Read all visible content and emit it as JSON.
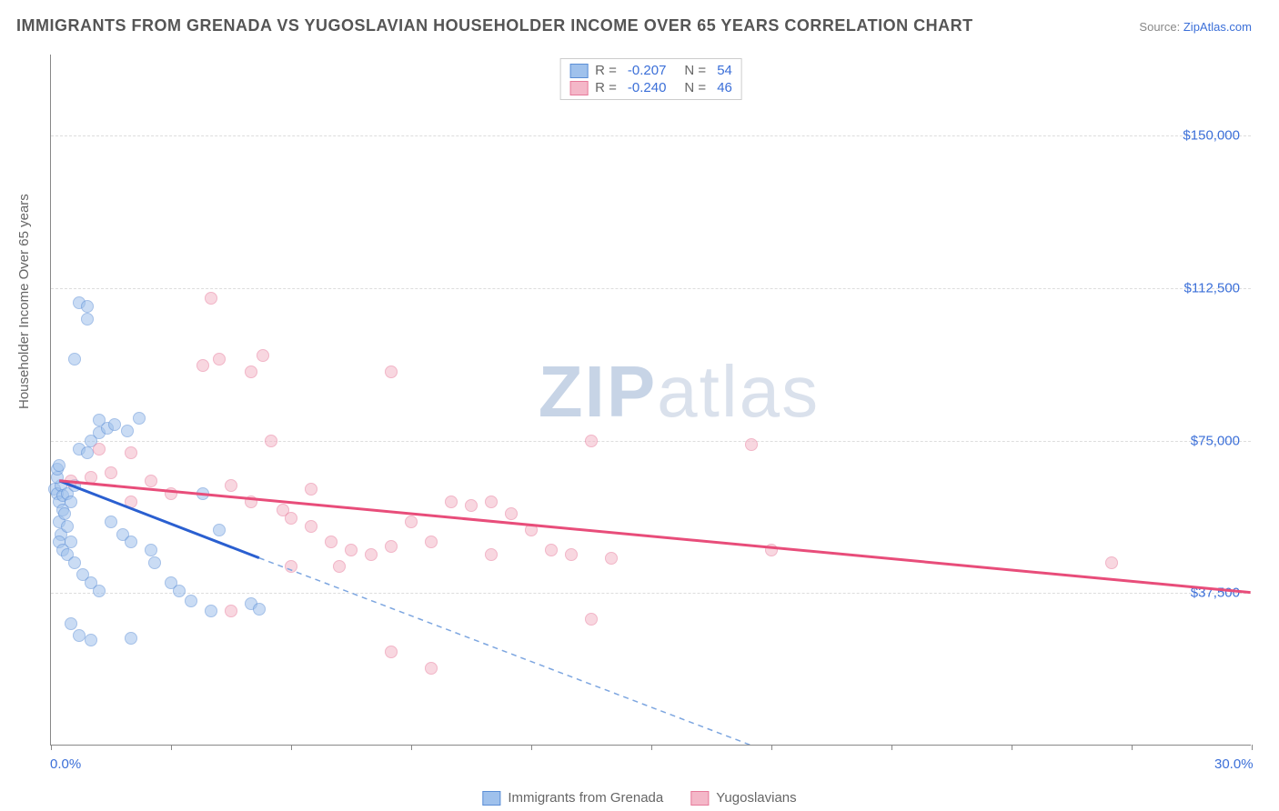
{
  "title": "IMMIGRANTS FROM GRENADA VS YUGOSLAVIAN HOUSEHOLDER INCOME OVER 65 YEARS CORRELATION CHART",
  "source_label": "Source:",
  "source_name": "ZipAtlas.com",
  "watermark_a": "ZIP",
  "watermark_b": "atlas",
  "chart": {
    "type": "scatter",
    "xlim": [
      0,
      30
    ],
    "ylim": [
      0,
      170000
    ],
    "ylabel": "Householder Income Over 65 years",
    "x_ticks": [
      0,
      3,
      6,
      9,
      12,
      15,
      18,
      21,
      24,
      27,
      30
    ],
    "x_tick_labels": {
      "0": "0.0%",
      "30": "30.0%"
    },
    "y_gridlines": [
      37500,
      75000,
      112500,
      150000
    ],
    "y_tick_labels": {
      "37500": "$37,500",
      "75000": "$75,000",
      "112500": "$112,500",
      "150000": "$150,000"
    },
    "background_color": "#ffffff",
    "grid_color": "#dddddd",
    "axis_color": "#888888",
    "point_radius": 7,
    "point_opacity": 0.55,
    "series": [
      {
        "name": "Immigrants from Grenada",
        "color_fill": "#9fc1ec",
        "color_stroke": "#5b8ed6",
        "line_color": "#2a5fd0",
        "line_width": 3,
        "dash_color": "#7da6e0",
        "R": "-0.207",
        "N": "54",
        "trend": {
          "x1": 0.2,
          "y1": 65000,
          "x2": 5.2,
          "y2": 46000
        },
        "trend_extend": {
          "x1": 5.2,
          "y1": 46000,
          "x2": 18,
          "y2": -2000
        },
        "points": [
          [
            0.1,
            63000
          ],
          [
            0.15,
            62000
          ],
          [
            0.2,
            60000
          ],
          [
            0.25,
            64000
          ],
          [
            0.3,
            61500
          ],
          [
            0.15,
            66000
          ],
          [
            0.2,
            55000
          ],
          [
            0.25,
            52000
          ],
          [
            0.3,
            58000
          ],
          [
            0.35,
            57000
          ],
          [
            0.15,
            68000
          ],
          [
            0.2,
            69000
          ],
          [
            0.4,
            62000
          ],
          [
            0.5,
            60000
          ],
          [
            0.6,
            64000
          ],
          [
            0.2,
            50000
          ],
          [
            0.3,
            48000
          ],
          [
            0.4,
            47000
          ],
          [
            0.5,
            50000
          ],
          [
            0.4,
            54000
          ],
          [
            0.7,
            109000
          ],
          [
            0.9,
            108000
          ],
          [
            0.9,
            105000
          ],
          [
            0.6,
            95000
          ],
          [
            0.7,
            73000
          ],
          [
            0.9,
            72000
          ],
          [
            1.0,
            75000
          ],
          [
            1.2,
            77000
          ],
          [
            1.4,
            78000
          ],
          [
            1.2,
            80000
          ],
          [
            1.6,
            79000
          ],
          [
            1.9,
            77500
          ],
          [
            2.2,
            80500
          ],
          [
            0.6,
            45000
          ],
          [
            0.8,
            42000
          ],
          [
            1.0,
            40000
          ],
          [
            1.2,
            38000
          ],
          [
            0.5,
            30000
          ],
          [
            0.7,
            27000
          ],
          [
            1.0,
            26000
          ],
          [
            2.0,
            26500
          ],
          [
            1.5,
            55000
          ],
          [
            1.8,
            52000
          ],
          [
            2.0,
            50000
          ],
          [
            2.5,
            48000
          ],
          [
            2.6,
            45000
          ],
          [
            3.0,
            40000
          ],
          [
            3.2,
            38000
          ],
          [
            3.5,
            35500
          ],
          [
            3.8,
            62000
          ],
          [
            4.2,
            53000
          ],
          [
            4.0,
            33000
          ],
          [
            5.0,
            35000
          ],
          [
            5.2,
            33500
          ]
        ]
      },
      {
        "name": "Yugoslavians",
        "color_fill": "#f4b7c8",
        "color_stroke": "#e77a9a",
        "line_color": "#e84d7a",
        "line_width": 3,
        "R": "-0.240",
        "N": "46",
        "trend": {
          "x1": 0.2,
          "y1": 65000,
          "x2": 30,
          "y2": 37500
        },
        "points": [
          [
            0.5,
            65000
          ],
          [
            1.0,
            66000
          ],
          [
            1.5,
            67000
          ],
          [
            2.0,
            60000
          ],
          [
            1.2,
            73000
          ],
          [
            2.0,
            72000
          ],
          [
            2.5,
            65000
          ],
          [
            3.0,
            62000
          ],
          [
            4.0,
            110000
          ],
          [
            4.2,
            95000
          ],
          [
            5.0,
            92000
          ],
          [
            5.3,
            96000
          ],
          [
            3.8,
            93500
          ],
          [
            5.5,
            75000
          ],
          [
            6.5,
            63000
          ],
          [
            4.5,
            64000
          ],
          [
            5.0,
            60000
          ],
          [
            5.8,
            58000
          ],
          [
            6.0,
            56000
          ],
          [
            6.5,
            54000
          ],
          [
            7.0,
            50000
          ],
          [
            7.5,
            48000
          ],
          [
            8.0,
            47000
          ],
          [
            8.5,
            49000
          ],
          [
            9.0,
            55000
          ],
          [
            9.5,
            50000
          ],
          [
            8.5,
            92000
          ],
          [
            10.0,
            60000
          ],
          [
            10.5,
            59000
          ],
          [
            11.0,
            60000
          ],
          [
            11.5,
            57000
          ],
          [
            12.0,
            53000
          ],
          [
            11.0,
            47000
          ],
          [
            12.5,
            48000
          ],
          [
            8.5,
            23000
          ],
          [
            9.5,
            19000
          ],
          [
            13.0,
            47000
          ],
          [
            13.5,
            75000
          ],
          [
            13.5,
            31000
          ],
          [
            14.0,
            46000
          ],
          [
            17.5,
            74000
          ],
          [
            18.0,
            48000
          ],
          [
            26.5,
            45000
          ],
          [
            4.5,
            33000
          ],
          [
            6.0,
            44000
          ],
          [
            7.2,
            44000
          ]
        ]
      }
    ]
  },
  "legend_top": {
    "r_label": "R =",
    "n_label": "N ="
  }
}
